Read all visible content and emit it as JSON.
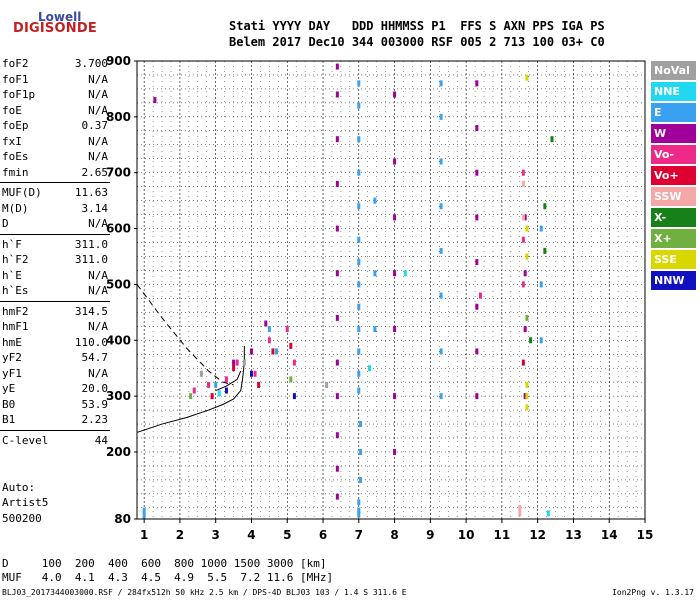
{
  "logo": {
    "line1": "Lowell",
    "line2": "DIGISONDE"
  },
  "header": {
    "line1": "Stati YYYY DAY   DDD HHMMSS P1  FFS S AXN PPS IGA PS",
    "line2": "Belem 2017 Dec10 344 003000 RSF 005 2 713 100 03+ C0"
  },
  "params": [
    {
      "k": "foF2",
      "v": "3.700"
    },
    {
      "k": "foF1",
      "v": "N/A"
    },
    {
      "k": "foF1p",
      "v": "N/A"
    },
    {
      "k": "foE",
      "v": "N/A"
    },
    {
      "k": "foEp",
      "v": "0.37"
    },
    {
      "k": "fxI",
      "v": "N/A"
    },
    {
      "k": "foEs",
      "v": "N/A"
    },
    {
      "k": "fmin",
      "v": "2.65"
    },
    {
      "k": "MUF(D)",
      "v": "11.63"
    },
    {
      "k": "M(D)",
      "v": "3.14"
    },
    {
      "k": "D",
      "v": "N/A"
    },
    {
      "k": "h`F",
      "v": "311.0"
    },
    {
      "k": "h`F2",
      "v": "311.0"
    },
    {
      "k": "h`E",
      "v": "N/A"
    },
    {
      "k": "h`Es",
      "v": "N/A"
    },
    {
      "k": "hmF2",
      "v": "314.5"
    },
    {
      "k": "hmF1",
      "v": "N/A"
    },
    {
      "k": "hmE",
      "v": "110.0"
    },
    {
      "k": "yF2",
      "v": "54.7"
    },
    {
      "k": "yF1",
      "v": "N/A"
    },
    {
      "k": "yE",
      "v": "20.0"
    },
    {
      "k": "B0",
      "v": "53.9"
    },
    {
      "k": "B1",
      "v": "2.23"
    },
    {
      "k": "C-level",
      "v": "44"
    }
  ],
  "auto": {
    "line1": "Auto:",
    "line2": "Artist5",
    "line3": "500200"
  },
  "legend": [
    {
      "label": "NoVal",
      "color": "#a0a0a0"
    },
    {
      "label": "NNE",
      "color": "#22d8f0"
    },
    {
      "label": "E",
      "color": "#3aa0f0"
    },
    {
      "label": "W",
      "color": "#a0009a"
    },
    {
      "label": "Vo-",
      "color": "#ee2a88"
    },
    {
      "label": "Vo+",
      "color": "#dd0030"
    },
    {
      "label": "SSW",
      "color": "#f4a8a8"
    },
    {
      "label": "X-",
      "color": "#188018"
    },
    {
      "label": "X+",
      "color": "#70b040"
    },
    {
      "label": "SSE",
      "color": "#d8d800"
    },
    {
      "label": "NNW",
      "color": "#1010c0"
    }
  ],
  "bottom": {
    "d_line": "D     100  200  400  600  800 1000 1500 3000 [km]",
    "muf_line": "MUF   4.0  4.1  4.3  4.5  4.9  5.5  7.2 11.6 [MHz]"
  },
  "footer": {
    "left": "BLJ03_2017344003000.RSF / 284fx512h 50 kHz 2.5 km / DPS-4D BLJ03 103 / 1.4 S 311.6 E",
    "right": "Ion2Png v. 1.3.17"
  },
  "chart_data": {
    "type": "scatter",
    "xlim": [
      0.8,
      15
    ],
    "ylim": [
      80,
      900
    ],
    "xticks": [
      "1",
      "2",
      "3",
      "4",
      "5",
      "6",
      "7",
      "8",
      "9",
      "10",
      "11",
      "12",
      "13",
      "14",
      "15"
    ],
    "yticks": [
      "80",
      "200",
      "300",
      "400",
      "500",
      "600",
      "700",
      "800",
      "900"
    ],
    "grid": true,
    "legend_position": "right",
    "series": [
      {
        "name": "E",
        "values": [
          [
            7,
            310
          ],
          [
            7,
            340
          ],
          [
            7,
            380
          ],
          [
            7,
            420
          ],
          [
            7,
            460
          ],
          [
            7,
            500
          ],
          [
            7,
            540
          ],
          [
            7,
            580
          ],
          [
            7,
            640
          ],
          [
            7,
            700
          ],
          [
            7,
            760
          ],
          [
            7,
            820
          ],
          [
            7,
            860
          ],
          [
            7.05,
            250
          ],
          [
            7.05,
            200
          ],
          [
            7.05,
            150
          ],
          [
            7,
            110
          ],
          [
            7,
            95
          ],
          [
            7,
            88
          ],
          [
            7.45,
            420
          ],
          [
            7.45,
            520
          ],
          [
            7.45,
            650
          ],
          [
            9.3,
            300
          ],
          [
            9.3,
            380
          ],
          [
            9.3,
            480
          ],
          [
            9.3,
            560
          ],
          [
            9.3,
            640
          ],
          [
            9.3,
            720
          ],
          [
            9.3,
            800
          ],
          [
            9.3,
            860
          ],
          [
            12.1,
            400
          ],
          [
            12.1,
            500
          ],
          [
            12.1,
            600
          ],
          [
            1,
            85
          ],
          [
            1,
            95
          ],
          [
            4.7,
            380
          ],
          [
            4.5,
            420
          ],
          [
            3,
            320
          ]
        ]
      },
      {
        "name": "W",
        "values": [
          [
            6.4,
            120
          ],
          [
            6.4,
            170
          ],
          [
            6.4,
            230
          ],
          [
            6.4,
            300
          ],
          [
            6.4,
            360
          ],
          [
            6.4,
            440
          ],
          [
            6.4,
            520
          ],
          [
            6.4,
            600
          ],
          [
            6.4,
            680
          ],
          [
            6.4,
            760
          ],
          [
            6.4,
            840
          ],
          [
            6.4,
            890
          ],
          [
            10.3,
            300
          ],
          [
            10.3,
            380
          ],
          [
            10.3,
            460
          ],
          [
            10.3,
            540
          ],
          [
            10.3,
            620
          ],
          [
            10.3,
            700
          ],
          [
            10.3,
            780
          ],
          [
            10.3,
            860
          ],
          [
            8,
            200
          ],
          [
            8,
            300
          ],
          [
            8,
            420
          ],
          [
            8,
            520
          ],
          [
            8,
            620
          ],
          [
            8,
            720
          ],
          [
            8,
            840
          ],
          [
            11.65,
            300
          ],
          [
            11.65,
            420
          ],
          [
            11.65,
            520
          ],
          [
            11.65,
            620
          ],
          [
            4,
            380
          ],
          [
            4.4,
            430
          ],
          [
            3.5,
            360
          ],
          [
            1.3,
            830
          ]
        ]
      },
      {
        "name": "Vo-",
        "values": [
          [
            3.3,
            330
          ],
          [
            3.6,
            360
          ],
          [
            4.5,
            400
          ],
          [
            5,
            420
          ],
          [
            5.2,
            360
          ],
          [
            4.1,
            340
          ],
          [
            2.8,
            320
          ],
          [
            2.4,
            310
          ],
          [
            11.6,
            500
          ],
          [
            11.6,
            580
          ],
          [
            11.6,
            700
          ],
          [
            10.4,
            480
          ]
        ]
      },
      {
        "name": "Vo+",
        "values": [
          [
            3.5,
            350
          ],
          [
            4.6,
            380
          ],
          [
            5.1,
            390
          ],
          [
            4.2,
            320
          ],
          [
            2.9,
            300
          ],
          [
            11.6,
            360
          ]
        ]
      },
      {
        "name": "SSW",
        "values": [
          [
            11.5,
            90
          ],
          [
            11.5,
            100
          ],
          [
            11.6,
            620
          ],
          [
            11.6,
            680
          ]
        ]
      },
      {
        "name": "X-",
        "values": [
          [
            12.2,
            640
          ],
          [
            12.2,
            560
          ],
          [
            11.8,
            400
          ],
          [
            12.4,
            760
          ]
        ]
      },
      {
        "name": "X+",
        "values": [
          [
            2.3,
            300
          ],
          [
            5.1,
            330
          ],
          [
            11.7,
            440
          ]
        ]
      },
      {
        "name": "SSE",
        "values": [
          [
            11.7,
            280
          ],
          [
            11.7,
            300
          ],
          [
            11.7,
            320
          ],
          [
            11.7,
            550
          ],
          [
            11.7,
            600
          ],
          [
            11.7,
            870
          ]
        ]
      },
      {
        "name": "NNE",
        "values": [
          [
            7.3,
            350
          ],
          [
            8.3,
            520
          ],
          [
            3.1,
            305
          ],
          [
            12.3,
            90
          ]
        ]
      },
      {
        "name": "NNW",
        "values": [
          [
            3.3,
            310
          ],
          [
            4,
            340
          ],
          [
            5.2,
            300
          ]
        ]
      },
      {
        "name": "NoVal",
        "values": [
          [
            2.6,
            340
          ],
          [
            3.8,
            360
          ],
          [
            6.1,
            320
          ]
        ]
      }
    ]
  }
}
